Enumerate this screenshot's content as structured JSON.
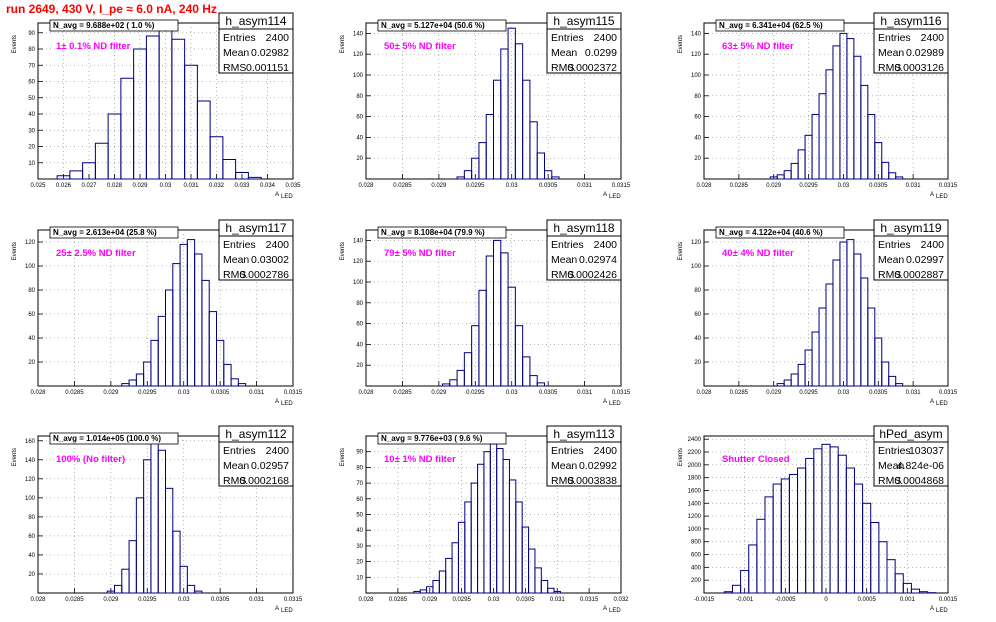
{
  "run_title": "run 2649,   430 V, I_pe ≈ 6.0 nA, 240 Hz",
  "y_axis_label": "Events",
  "x_axis_label": "A",
  "x_axis_subscript": "LED",
  "stat_labels": {
    "entries": "Entries",
    "mean": "Mean",
    "rms": "RMS"
  },
  "colors": {
    "histogram": "#000080",
    "annotation": "#ff00ff",
    "run_title": "#ff0000",
    "grid": "#9a9a9a"
  },
  "chart_data": [
    {
      "type": "bar",
      "name": "h_asym114",
      "navg": "N_avg = 9.688e+02 ( 1.0 %)",
      "filter": "1± 0.1% ND filter",
      "entries": "2400",
      "mean": "0.02982",
      "rms": "0.001151",
      "xlim": [
        0.025,
        0.035
      ],
      "ylim": [
        0,
        96
      ],
      "xticks": [
        "0.025",
        "0.026",
        "0.027",
        "0.028",
        "0.029",
        "0.03",
        "0.031",
        "0.032",
        "0.033",
        "0.034",
        "0.035"
      ],
      "yticks": [
        "10",
        "20",
        "30",
        "40",
        "50",
        "60",
        "70",
        "80",
        "90"
      ],
      "centers": [
        0.0255,
        0.026,
        0.0265,
        0.027,
        0.0275,
        0.028,
        0.0285,
        0.029,
        0.0295,
        0.03,
        0.0305,
        0.031,
        0.0315,
        0.032,
        0.0325,
        0.033,
        0.0335,
        0.034
      ],
      "values": [
        0,
        2,
        5,
        10,
        22,
        40,
        62,
        80,
        88,
        95,
        86,
        70,
        48,
        26,
        12,
        4,
        1,
        0
      ]
    },
    {
      "type": "bar",
      "name": "h_asym115",
      "navg": "N_avg = 5.127e+04 (50.6 %)",
      "filter": "50± 5% ND filter",
      "entries": "2400",
      "mean": "0.0299",
      "rms": "0.0002372",
      "xlim": [
        0.028,
        0.0315
      ],
      "ylim": [
        0,
        150
      ],
      "xticks": [
        "0.028",
        "0.0285",
        "0.029",
        "0.0295",
        "0.03",
        "0.0305",
        "0.031",
        "0.0315"
      ],
      "yticks": [
        "20",
        "40",
        "60",
        "80",
        "100",
        "120",
        "140"
      ],
      "centers": [
        0.0293,
        0.0294,
        0.0295,
        0.0296,
        0.0297,
        0.0298,
        0.0299,
        0.03,
        0.0301,
        0.0302,
        0.0303,
        0.0304,
        0.0305,
        0.0306
      ],
      "values": [
        2,
        8,
        20,
        35,
        62,
        95,
        125,
        145,
        130,
        95,
        55,
        25,
        8,
        2
      ]
    },
    {
      "type": "bar",
      "name": "h_asym116",
      "navg": "N_avg = 6.341e+04 (62.5 %)",
      "filter": "63± 5% ND filter",
      "entries": "2400",
      "mean": "0.02989",
      "rms": "0.0003126",
      "xlim": [
        0.028,
        0.0315
      ],
      "ylim": [
        0,
        150
      ],
      "xticks": [
        "0.028",
        "0.0285",
        "0.029",
        "0.0295",
        "0.03",
        "0.0305",
        "0.031",
        "0.0315"
      ],
      "yticks": [
        "20",
        "40",
        "60",
        "80",
        "100",
        "120",
        "140"
      ],
      "centers": [
        0.029,
        0.0291,
        0.0292,
        0.0293,
        0.0294,
        0.0295,
        0.0296,
        0.0297,
        0.0298,
        0.0299,
        0.03,
        0.0301,
        0.0302,
        0.0303,
        0.0304,
        0.0305,
        0.0306,
        0.0307,
        0.0308
      ],
      "values": [
        2,
        4,
        8,
        15,
        28,
        42,
        62,
        82,
        105,
        128,
        140,
        135,
        118,
        90,
        62,
        35,
        16,
        6,
        2
      ]
    },
    {
      "type": "bar",
      "name": "h_asym117",
      "navg": "N_avg = 2.613e+04 (25.8 %)",
      "filter": "25± 2.5% ND filter",
      "entries": "2400",
      "mean": "0.03002",
      "rms": "0.0002786",
      "xlim": [
        0.028,
        0.0315
      ],
      "ylim": [
        0,
        130
      ],
      "xticks": [
        "0.028",
        "0.0285",
        "0.029",
        "0.0295",
        "0.03",
        "0.0305",
        "0.031",
        "0.0315"
      ],
      "yticks": [
        "20",
        "40",
        "60",
        "80",
        "100",
        "120"
      ],
      "centers": [
        0.0292,
        0.0293,
        0.0294,
        0.0295,
        0.0296,
        0.0297,
        0.0298,
        0.0299,
        0.03,
        0.0301,
        0.0302,
        0.0303,
        0.0304,
        0.0305,
        0.0306,
        0.0307,
        0.0308
      ],
      "values": [
        2,
        5,
        10,
        20,
        38,
        58,
        80,
        102,
        118,
        122,
        110,
        88,
        62,
        38,
        18,
        6,
        2
      ]
    },
    {
      "type": "bar",
      "name": "h_asym118",
      "navg": "N_avg = 8.108e+04 (79.9 %)",
      "filter": "79± 5% ND filter",
      "entries": "2400",
      "mean": "0.02974",
      "rms": "0.0002426",
      "xlim": [
        0.028,
        0.0315
      ],
      "ylim": [
        0,
        150
      ],
      "xticks": [
        "0.028",
        "0.0285",
        "0.029",
        "0.0295",
        "0.03",
        "0.0305",
        "0.031",
        "0.0315"
      ],
      "yticks": [
        "20",
        "40",
        "60",
        "80",
        "100",
        "120",
        "140"
      ],
      "centers": [
        0.0291,
        0.0292,
        0.0293,
        0.0294,
        0.0295,
        0.0296,
        0.0297,
        0.0298,
        0.0299,
        0.03,
        0.0301,
        0.0302,
        0.0303,
        0.0304
      ],
      "values": [
        2,
        6,
        15,
        32,
        58,
        92,
        125,
        140,
        128,
        95,
        58,
        28,
        10,
        3
      ]
    },
    {
      "type": "bar",
      "name": "h_asym119",
      "navg": "N_avg = 4.122e+04 (40.6 %)",
      "filter": "40± 4% ND filter",
      "entries": "2400",
      "mean": "0.02997",
      "rms": "0.0002887",
      "xlim": [
        0.028,
        0.0315
      ],
      "ylim": [
        0,
        130
      ],
      "xticks": [
        "0.028",
        "0.0285",
        "0.029",
        "0.0295",
        "0.03",
        "0.0305",
        "0.031",
        "0.0315"
      ],
      "yticks": [
        "20",
        "40",
        "60",
        "80",
        "100",
        "120"
      ],
      "centers": [
        0.0291,
        0.0292,
        0.0293,
        0.0294,
        0.0295,
        0.0296,
        0.0297,
        0.0298,
        0.0299,
        0.03,
        0.0301,
        0.0302,
        0.0303,
        0.0304,
        0.0305,
        0.0306,
        0.0307,
        0.0308
      ],
      "values": [
        2,
        5,
        10,
        18,
        30,
        45,
        65,
        85,
        105,
        120,
        122,
        110,
        90,
        65,
        40,
        20,
        8,
        2
      ]
    },
    {
      "type": "bar",
      "name": "h_asym112",
      "navg": "N_avg = 1.014e+05 (100.0 %)",
      "filter": "100% (No filter)",
      "entries": "2400",
      "mean": "0.02957",
      "rms": "0.0002168",
      "xlim": [
        0.028,
        0.0315
      ],
      "ylim": [
        0,
        165
      ],
      "xticks": [
        "0.028",
        "0.0285",
        "0.029",
        "0.0295",
        "0.03",
        "0.0305",
        "0.031",
        "0.0315"
      ],
      "yticks": [
        "20",
        "40",
        "60",
        "80",
        "100",
        "120",
        "140",
        "160"
      ],
      "centers": [
        0.029,
        0.0291,
        0.0292,
        0.0293,
        0.0294,
        0.0295,
        0.0296,
        0.0297,
        0.0298,
        0.0299,
        0.03,
        0.0301,
        0.0302
      ],
      "values": [
        2,
        8,
        25,
        55,
        100,
        140,
        158,
        150,
        110,
        65,
        28,
        8,
        2
      ]
    },
    {
      "type": "bar",
      "name": "h_asym113",
      "navg": "N_avg = 9.776e+03 ( 9.6 %)",
      "filter": "10± 1% ND filter",
      "entries": "2400",
      "mean": "0.02992",
      "rms": "0.0003838",
      "xlim": [
        0.028,
        0.032
      ],
      "ylim": [
        0,
        100
      ],
      "xticks": [
        "0.028",
        "0.0285",
        "0.029",
        "0.0295",
        "0.03",
        "0.0305",
        "0.031",
        "0.0315",
        "0.032"
      ],
      "yticks": [
        "10",
        "20",
        "30",
        "40",
        "50",
        "60",
        "70",
        "80",
        "90"
      ],
      "centers": [
        0.0288,
        0.0289,
        0.029,
        0.0291,
        0.0292,
        0.0293,
        0.0294,
        0.0295,
        0.0296,
        0.0297,
        0.0298,
        0.0299,
        0.03,
        0.0301,
        0.0302,
        0.0303,
        0.0304,
        0.0305,
        0.0306,
        0.0307,
        0.0308,
        0.0309,
        0.031
      ],
      "values": [
        1,
        2,
        4,
        8,
        14,
        22,
        32,
        45,
        58,
        70,
        82,
        90,
        95,
        92,
        85,
        72,
        58,
        42,
        28,
        16,
        8,
        3,
        1
      ]
    },
    {
      "type": "bar",
      "name": "hPed_asym",
      "navg": "",
      "filter": "Shutter Closed",
      "entries": "103037",
      "mean": "4.824e-06",
      "rms": "0.0004868",
      "xlim": [
        -0.0015,
        0.0015
      ],
      "ylim": [
        0,
        2450
      ],
      "xticks": [
        "-0.0015",
        "-0.001",
        "-0.0005",
        "0",
        "0.0005",
        "0.001",
        "0.0015"
      ],
      "yticks": [
        "200",
        "400",
        "600",
        "800",
        "1000",
        "1200",
        "1400",
        "1600",
        "1800",
        "2000",
        "2200",
        "2400"
      ],
      "centers": [
        -0.0012,
        -0.0011,
        -0.001,
        -0.0009,
        -0.0008,
        -0.0007,
        -0.0006,
        -0.0005,
        -0.0004,
        -0.0003,
        -0.0002,
        -0.0001,
        0.0,
        0.0001,
        0.0002,
        0.0003,
        0.0004,
        0.0005,
        0.0006,
        0.0007,
        0.0008,
        0.0009,
        0.001,
        0.0011,
        0.0012,
        0.0013
      ],
      "values": [
        20,
        120,
        350,
        750,
        1150,
        1500,
        1700,
        1780,
        1850,
        1950,
        2100,
        2250,
        2320,
        2280,
        2150,
        1950,
        1700,
        1400,
        1100,
        800,
        520,
        300,
        150,
        60,
        20,
        5
      ]
    }
  ]
}
